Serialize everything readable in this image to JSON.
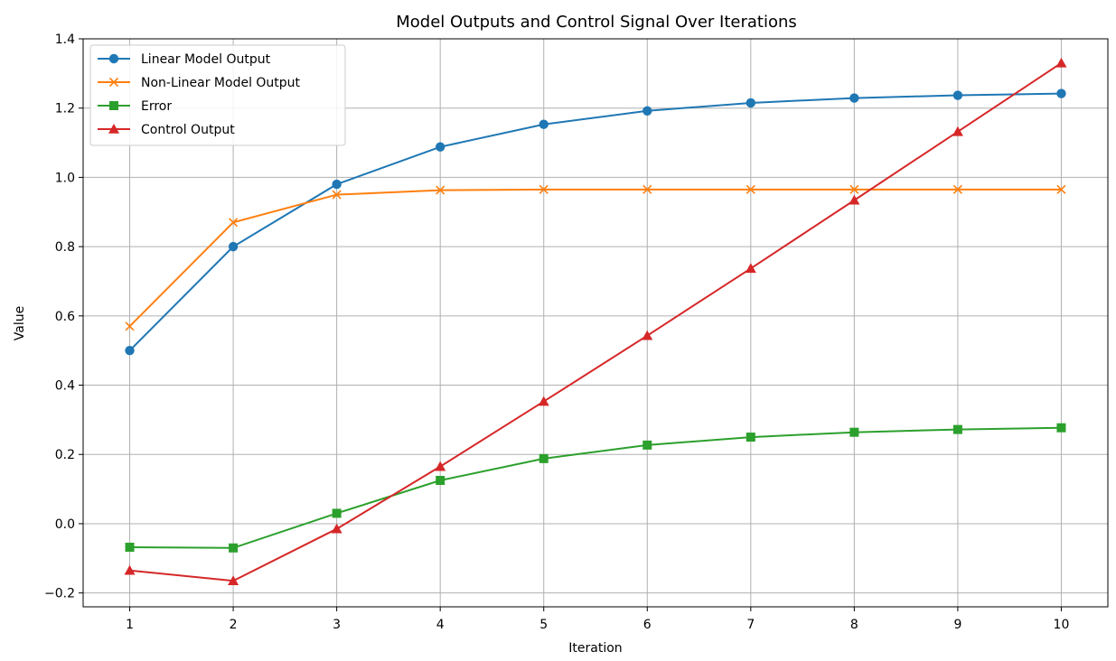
{
  "chart_data": {
    "type": "line",
    "title": "Model Outputs and Control Signal Over Iterations",
    "xlabel": "Iteration",
    "ylabel": "Value",
    "x": [
      1,
      2,
      3,
      4,
      5,
      6,
      7,
      8,
      9,
      10
    ],
    "xlim": [
      0.55,
      10.45
    ],
    "ylim": [
      -0.24,
      1.4
    ],
    "xticks": [
      "1",
      "2",
      "3",
      "4",
      "5",
      "6",
      "7",
      "8",
      "9",
      "10"
    ],
    "yticks": [
      -0.2,
      0.0,
      0.2,
      0.4,
      0.6,
      0.8,
      1.0,
      1.2,
      1.4
    ],
    "ytick_labels": [
      "−0.2",
      "0.0",
      "0.2",
      "0.4",
      "0.6",
      "0.8",
      "1.0",
      "1.2",
      "1.4"
    ],
    "grid": true,
    "legend_position": "top-left",
    "series": [
      {
        "name": "Linear Model Output",
        "color": "#1f77b4",
        "marker": "circle",
        "values": [
          0.5,
          0.8,
          0.98,
          1.088,
          1.153,
          1.192,
          1.215,
          1.229,
          1.237,
          1.242
        ]
      },
      {
        "name": "Non-Linear Model Output",
        "color": "#ff7f0e",
        "marker": "x",
        "values": [
          0.57,
          0.87,
          0.95,
          0.963,
          0.965,
          0.965,
          0.965,
          0.965,
          0.965,
          0.965
        ]
      },
      {
        "name": "Error",
        "color": "#2ca02c",
        "marker": "square",
        "values": [
          -0.068,
          -0.07,
          0.03,
          0.125,
          0.188,
          0.227,
          0.25,
          0.264,
          0.272,
          0.277
        ]
      },
      {
        "name": "Control Output",
        "color": "#d62728",
        "marker": "triangle",
        "values": [
          -0.135,
          -0.165,
          -0.015,
          0.165,
          0.353,
          0.543,
          0.737,
          0.934,
          1.132,
          1.33
        ]
      }
    ]
  }
}
